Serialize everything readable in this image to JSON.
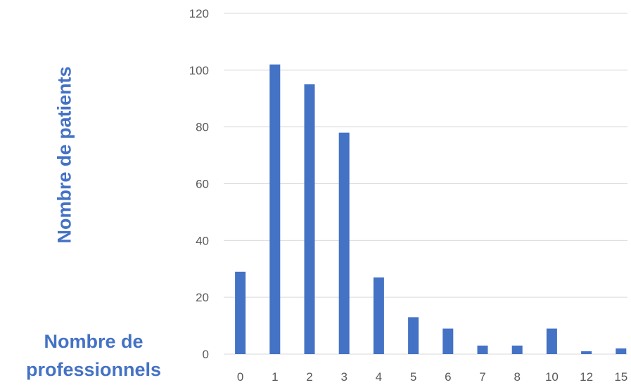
{
  "chart_data": {
    "type": "bar",
    "categories": [
      "0",
      "1",
      "2",
      "3",
      "4",
      "5",
      "6",
      "7",
      "8",
      "10",
      "12",
      "15"
    ],
    "values": [
      29,
      102,
      95,
      78,
      27,
      13,
      9,
      3,
      3,
      9,
      1,
      2
    ],
    "ylabel": "Nombre de patients",
    "xlabel_lines": [
      "Nombre de",
      "professionnels"
    ],
    "ylim": [
      0,
      120
    ],
    "yticks": [
      0,
      20,
      40,
      60,
      80,
      100,
      120
    ],
    "grid": true,
    "bar_color": "#4472C4",
    "grid_color": "#D9D9D9",
    "label_color": "#4472C4"
  }
}
